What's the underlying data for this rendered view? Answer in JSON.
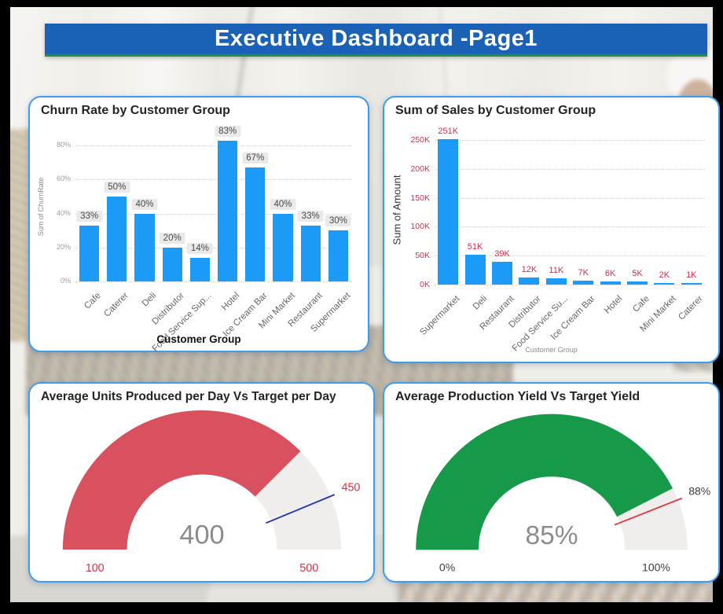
{
  "banner": {
    "title": "Executive Dashboard -Page1"
  },
  "colors": {
    "banner_blue": "#1b62b6",
    "banner_underline_green": "#17963c",
    "card_border": "#3f9ceb",
    "bar_blue": "#1c9af8",
    "crimson_text": "#d42f4b",
    "gauge_red": "#d9505e",
    "gauge_green": "#17994a",
    "target_needle_blue": "#2134b5",
    "target_needle_red": "#e23440",
    "axis_gray": "#9c9c9c"
  },
  "chart_data": [
    {
      "type": "bar",
      "title": "Churn Rate by Customer Group",
      "xlabel": "Customer Group",
      "ylabel": "Sum of ChurnRate",
      "categories": [
        "Cafe",
        "Caterer",
        "Deli",
        "Distributor",
        "Food Service Sup...",
        "Hotel",
        "Ice Cream Bar",
        "Mini Market",
        "Restaurant",
        "Supermarket"
      ],
      "values": [
        33,
        50,
        40,
        20,
        14,
        83,
        67,
        40,
        33,
        30
      ],
      "data_labels": [
        "33%",
        "50%",
        "40%",
        "20%",
        "14%",
        "83%",
        "67%",
        "40%",
        "33%",
        "30%"
      ],
      "yticks": [
        0,
        20,
        40,
        60,
        80
      ],
      "ytick_labels": [
        "0%",
        "20%",
        "40%",
        "60%",
        "80%"
      ],
      "ylim": [
        0,
        88
      ],
      "grid": "dotted",
      "legend": "none",
      "bar_color": "#1c9af8",
      "label_style": "pill"
    },
    {
      "type": "bar",
      "title": "Sum of Sales by Customer Group",
      "xlabel": "Customer Group",
      "ylabel": "Sum of Amount",
      "categories": [
        "Supermarket",
        "Deli",
        "Restaurant",
        "Distributor",
        "Food Service Su...",
        "Ice Cream Bar",
        "Hotel",
        "Cafe",
        "Mini Market",
        "Caterer"
      ],
      "values": [
        251,
        51,
        39,
        12,
        11,
        7,
        6,
        5,
        2,
        1
      ],
      "data_labels": [
        "251K",
        "51K",
        "39K",
        "12K",
        "11K",
        "7K",
        "6K",
        "5K",
        "2K",
        "1K"
      ],
      "yticks": [
        0,
        50,
        100,
        150,
        200,
        250
      ],
      "ytick_labels": [
        "0K",
        "50K",
        "100K",
        "150K",
        "200K",
        "250K"
      ],
      "ylim": [
        0,
        258
      ],
      "grid": "dotted",
      "legend": "none",
      "bar_color": "#1c9af8",
      "label_style": "red"
    },
    {
      "type": "gauge",
      "title": "Average Units Produced per Day Vs Target per Day",
      "min": 100,
      "max": 500,
      "value": 400,
      "target": 450,
      "min_label": "100",
      "max_label": "500",
      "value_label": "400",
      "target_label": "450",
      "arc_color": "#d9505e",
      "track_color": "#f0eeec",
      "needle_color": "#2134b5",
      "endpoint_label_color": "#e02e44",
      "value_color": "#8c8c8c"
    },
    {
      "type": "gauge",
      "title": "Average Production Yield Vs Target Yield",
      "min": 0,
      "max": 100,
      "value": 85,
      "target": 88,
      "min_label": "0%",
      "max_label": "100%",
      "value_label": "85%",
      "target_label": "88%",
      "arc_color": "#17994a",
      "track_color": "#f0eeec",
      "needle_color": "#e23440",
      "endpoint_label_color": "#3d3d3d",
      "value_color": "#8c8c8c"
    }
  ]
}
